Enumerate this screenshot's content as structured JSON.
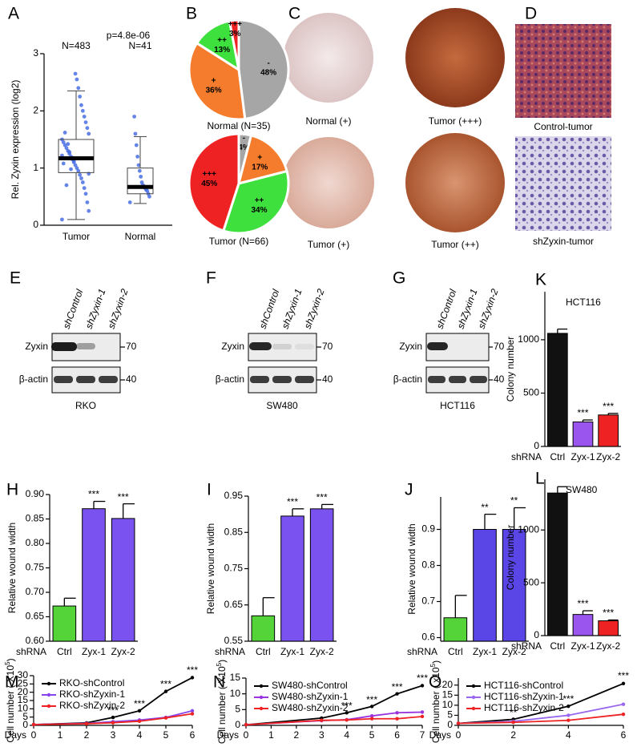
{
  "chart_data": [
    {
      "type": "box",
      "letter": "A",
      "title": "p=4.8e-06",
      "ylabel": "Rel. Zyxin expression (log2)",
      "categories": [
        "Tumor",
        "Normal"
      ],
      "annotations": [
        "N=483",
        "N=41"
      ],
      "boxes": [
        {
          "low": 0.1,
          "q1": 0.92,
          "median": 1.17,
          "q3": 1.5,
          "high": 2.35
        },
        {
          "low": 0.38,
          "q1": 0.55,
          "median": 0.67,
          "q3": 1.0,
          "high": 1.55
        }
      ],
      "points": [
        [
          0.1,
          0.25,
          0.4,
          0.55,
          0.65,
          0.75,
          0.82,
          0.88,
          0.95,
          1.0,
          1.05,
          1.1,
          1.15,
          1.2,
          1.25,
          1.3,
          1.35,
          1.4,
          1.45,
          1.5,
          1.6,
          1.7,
          1.8,
          1.9,
          2.0,
          2.1,
          2.25,
          2.4,
          2.55,
          2.65,
          1.12,
          1.18,
          0.98,
          1.28,
          1.42,
          0.7,
          1.62,
          1.08,
          1.22,
          0.9
        ],
        [
          0.4,
          0.5,
          0.55,
          0.6,
          0.62,
          0.65,
          0.68,
          0.7,
          0.75,
          0.85,
          0.95,
          1.05,
          1.2,
          1.4,
          1.6,
          1.9
        ]
      ],
      "color": "#4a6fe3",
      "ylim": [
        0,
        3
      ],
      "yticks": [
        0,
        1,
        2,
        3
      ]
    },
    {
      "type": "pie",
      "letter": "B",
      "title": "Normal (N=35)",
      "categories": [
        "-",
        "+",
        "++",
        "+++"
      ],
      "values": [
        48,
        36,
        13,
        3
      ],
      "value_labels": [
        "48%",
        "36%",
        "13%",
        "3%"
      ],
      "colors": [
        "#a6a6a6",
        "#f47c2c",
        "#3ee03e",
        "#ee2222"
      ]
    },
    {
      "type": "pie",
      "title": "Tumor (N=66)",
      "categories": [
        "-",
        "+",
        "++",
        "+++"
      ],
      "values": [
        4,
        17,
        34,
        45
      ],
      "value_labels": [
        "4%",
        "17%",
        "34%",
        "45%"
      ],
      "colors": [
        "#a6a6a6",
        "#f47c2c",
        "#3ee03e",
        "#ee2222"
      ]
    },
    {
      "type": "bar",
      "letter": "H",
      "ylabel": "Relative wound width",
      "xlabel": "shRNA",
      "categories": [
        "Ctrl",
        "Zyx-1",
        "Zyx-2"
      ],
      "values": [
        0.672,
        0.871,
        0.851
      ],
      "errors": [
        0.016,
        0.015,
        0.03
      ],
      "significance": [
        null,
        "***",
        "***"
      ],
      "colors": [
        "#55d43a",
        "#7a52f0",
        "#7a52f0"
      ],
      "ylim": [
        0.6,
        0.9
      ],
      "yticks": [
        {
          "value": 0.6,
          "label": "0.60"
        },
        0.65,
        {
          "value": 0.7,
          "label": "0.70"
        },
        0.75,
        {
          "value": 0.8,
          "label": "0.80"
        },
        0.85,
        {
          "value": 0.9,
          "label": "0.90"
        }
      ]
    },
    {
      "type": "bar",
      "letter": "I",
      "ylabel": "Relative wound width",
      "xlabel": "shRNA",
      "categories": [
        "Ctrl",
        "Zyx-1",
        "Zyx-2"
      ],
      "values": [
        0.62,
        0.895,
        0.915
      ],
      "errors": [
        0.05,
        0.02,
        0.012
      ],
      "significance": [
        null,
        "***",
        "***"
      ],
      "colors": [
        "#55d43a",
        "#7a52f0",
        "#7a52f0"
      ],
      "ylim": [
        0.55,
        0.95
      ],
      "yticks": [
        0.55,
        0.65,
        0.75,
        0.85,
        0.95
      ]
    },
    {
      "type": "bar",
      "letter": "J",
      "ylabel": "Relative wound width",
      "xlabel": "shRNA",
      "categories": [
        "Ctrl",
        "Zyx-1",
        "Zyx-2"
      ],
      "values": [
        0.655,
        0.9,
        0.9
      ],
      "errors": [
        0.062,
        0.042,
        0.06
      ],
      "significance": [
        null,
        "**",
        "**"
      ],
      "colors": [
        "#55d43a",
        "#5a46e6",
        "#5a46e6"
      ],
      "ylim": [
        0.59,
        0.99
      ],
      "yticks": [
        0.6,
        0.7,
        0.8,
        0.9
      ]
    },
    {
      "type": "bar",
      "letter": "K",
      "title": "HCT116",
      "ylabel": "Colony number",
      "xlabel": "shRNA",
      "categories": [
        "Ctrl",
        "Zyx-1",
        "Zyx-2"
      ],
      "values": [
        1060,
        230,
        295
      ],
      "errors": [
        40,
        18,
        15
      ],
      "significance": [
        null,
        "***",
        "***"
      ],
      "colors": [
        "#111111",
        "#9955ee",
        "#ee2222"
      ],
      "ylim": [
        0,
        1450
      ],
      "yticks": [
        0,
        500,
        1000
      ]
    },
    {
      "type": "bar",
      "letter": "L",
      "title": "SW480",
      "ylabel": "Colony number",
      "xlabel": "shRNA",
      "categories": [
        "Ctrl",
        "Zyx-1",
        "Zyx-2"
      ],
      "values": [
        1350,
        200,
        140
      ],
      "errors": [
        60,
        35,
        8
      ],
      "significance": [
        null,
        "***",
        "***"
      ],
      "colors": [
        "#111111",
        "#9955ee",
        "#ee2222"
      ],
      "ylim": [
        0,
        1480
      ],
      "yticks": [
        0,
        500,
        1000
      ]
    },
    {
      "type": "line",
      "letter": "M",
      "ylabel": "Cell number ( X10",
      "ylabel_superscript": "5",
      "ylabel_suffix": ")",
      "xlabel": "Days",
      "x": [
        0,
        2,
        3,
        4,
        5,
        6
      ],
      "series": [
        {
          "name": "RKO-shControl",
          "color": "#000000",
          "values": [
            0.5,
            1.5,
            4.8,
            8.8,
            20.5,
            28.8
          ],
          "errors": [
            0.1,
            0.2,
            0.3,
            0.4,
            0.6,
            0.9
          ]
        },
        {
          "name": "RKO-shZyxin-1",
          "color": "#8844ee",
          "values": [
            0.5,
            1.2,
            2.2,
            3.2,
            4.8,
            8.8
          ],
          "errors": [
            0.1,
            0.1,
            0.2,
            0.2,
            0.3,
            0.5
          ]
        },
        {
          "name": "RKO-shZyxin-2",
          "color": "#ee2222",
          "values": [
            0.5,
            1.0,
            1.6,
            2.5,
            4.5,
            7.0
          ],
          "errors": [
            0.1,
            0.1,
            0.1,
            0.2,
            0.2,
            0.3
          ]
        }
      ],
      "significance": [
        null,
        null,
        "***",
        "***",
        "***",
        "***"
      ],
      "xlim": [
        0,
        6
      ],
      "xticks": [
        0,
        1,
        2,
        3,
        4,
        5,
        6
      ],
      "ylim": [
        0,
        30
      ],
      "yticks": [
        0,
        5,
        10,
        15,
        20,
        25,
        30
      ]
    },
    {
      "type": "line",
      "letter": "N",
      "ylabel": "Cell number ( X10",
      "ylabel_superscript": "5",
      "ylabel_suffix": ")",
      "xlabel": "Days",
      "x": [
        0,
        3,
        4,
        5,
        6,
        7
      ],
      "series": [
        {
          "name": "SW480-shControl",
          "color": "#000000",
          "values": [
            0.2,
            2.3,
            4.0,
            6.0,
            10.0,
            12.6
          ],
          "errors": [
            0.05,
            0.1,
            0.2,
            0.2,
            0.2,
            0.4
          ]
        },
        {
          "name": "SW480-shZyxin-1",
          "color": "#9933dd",
          "values": [
            0.2,
            1.5,
            1.8,
            3.0,
            4.0,
            4.2
          ],
          "errors": [
            0.05,
            0.1,
            0.1,
            0.2,
            0.3,
            0.4
          ]
        },
        {
          "name": "SW480-shZyxin-2",
          "color": "#ee2222",
          "values": [
            0.2,
            1.6,
            1.7,
            2.1,
            2.1,
            2.8
          ],
          "errors": [
            0.05,
            0.1,
            0.1,
            0.1,
            0.1,
            0.2
          ]
        }
      ],
      "significance": [
        null,
        null,
        "***",
        "***",
        "***",
        "***"
      ],
      "xlim": [
        0,
        7
      ],
      "xticks": [
        0,
        1,
        2,
        3,
        4,
        5,
        6,
        7
      ],
      "ylim": [
        0,
        15
      ],
      "yticks": [
        0,
        5,
        10,
        15
      ]
    },
    {
      "type": "line",
      "letter": "O",
      "ylabel": "Cell number ( x10",
      "ylabel_superscript": "5",
      "ylabel_suffix": ")",
      "xlabel": "Days",
      "x": [
        0,
        2,
        4,
        6
      ],
      "series": [
        {
          "name": "HCT116-shControl",
          "color": "#000000",
          "values": [
            1.0,
            3.0,
            9.5,
            20.8
          ],
          "errors": [
            0.1,
            0.3,
            0.5,
            0.8
          ]
        },
        {
          "name": "HCT116-shZyxin-1",
          "color": "#9966ee",
          "values": [
            1.0,
            2.0,
            5.0,
            10.5
          ],
          "errors": [
            0.1,
            0.2,
            0.4,
            0.7
          ]
        },
        {
          "name": "HCT116-shZyxin-2",
          "color": "#ee2222",
          "values": [
            1.0,
            1.5,
            2.5,
            5.5
          ],
          "errors": [
            0.1,
            0.1,
            0.2,
            0.5
          ]
        }
      ],
      "significance": [
        null,
        "**",
        "***",
        "***"
      ],
      "xlim": [
        0,
        6
      ],
      "xticks": [
        0,
        2,
        4,
        6
      ],
      "ylim": [
        0,
        23.5
      ],
      "yticks": [
        0,
        5,
        10,
        15,
        20
      ]
    }
  ],
  "images": [
    {
      "letter": "C",
      "labels": [
        "Normal (+)",
        "Tumor (+++)",
        "Tumor (+)",
        "Tumor (++)"
      ]
    },
    {
      "letter": "D",
      "labels": [
        "Control-tumor",
        "shZyxin-tumor"
      ]
    }
  ],
  "blots": [
    {
      "letter": "E",
      "lanes": [
        "shControl",
        "shZyxin-1",
        "shZyxin-2"
      ],
      "rows": [
        "Zyxin",
        "β-actin"
      ],
      "markers": [
        70,
        40
      ],
      "cell_line": "RKO"
    },
    {
      "letter": "F",
      "lanes": [
        "shControl",
        "shZyxin-1",
        "shZyxin-2"
      ],
      "rows": [
        "Zyxin",
        "β-actin"
      ],
      "markers": [
        70,
        40
      ],
      "cell_line": "SW480"
    },
    {
      "letter": "G",
      "lanes": [
        "shControl",
        "shZyxin-1",
        "shZyxin-2"
      ],
      "rows": [
        "Zyxin",
        "β-actin"
      ],
      "markers": [
        70,
        40
      ],
      "cell_line": "HCT116"
    }
  ]
}
